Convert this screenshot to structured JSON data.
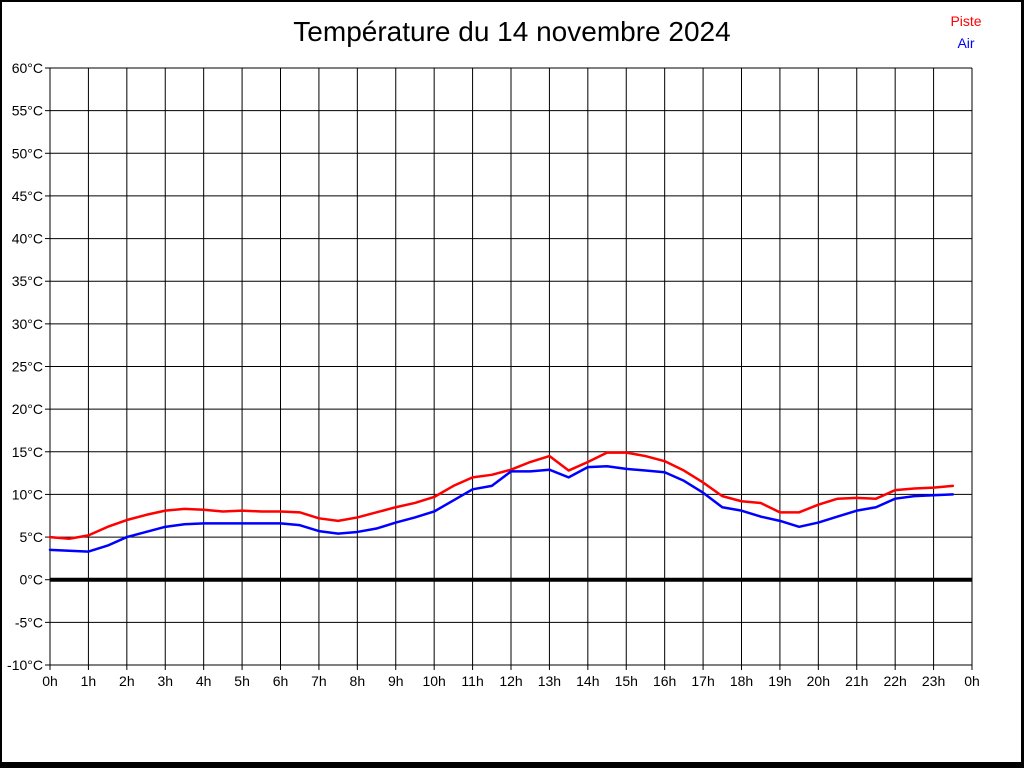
{
  "title": "Température du 14 novembre 2024",
  "legend": [
    {
      "label": "Piste",
      "color": "#ff0000"
    },
    {
      "label": "Air",
      "color": "#0000ff"
    }
  ],
  "colors": {
    "grid": "#000000",
    "zero_line": "#000000",
    "background": "#ffffff",
    "piste": "#ff0000",
    "air": "#0000ff"
  },
  "chart_data": {
    "type": "line",
    "title": "Température du 14 novembre 2024",
    "xlabel": "",
    "ylabel": "",
    "xlim": [
      0,
      24
    ],
    "ylim": [
      -10,
      60
    ],
    "grid": true,
    "zero_line_value": 0,
    "legend_position": "top-right",
    "x_unit": "h",
    "y_unit": "°C",
    "x_tick_values": [
      0,
      1,
      2,
      3,
      4,
      5,
      6,
      7,
      8,
      9,
      10,
      11,
      12,
      13,
      14,
      15,
      16,
      17,
      18,
      19,
      20,
      21,
      22,
      23,
      24
    ],
    "x_tick_labels": [
      "0h",
      "1h",
      "2h",
      "3h",
      "4h",
      "5h",
      "6h",
      "7h",
      "8h",
      "9h",
      "10h",
      "11h",
      "12h",
      "13h",
      "14h",
      "15h",
      "16h",
      "17h",
      "18h",
      "19h",
      "20h",
      "21h",
      "22h",
      "23h",
      "0h"
    ],
    "y_tick_values": [
      60,
      55,
      50,
      45,
      40,
      35,
      30,
      25,
      20,
      15,
      10,
      5,
      0,
      -5,
      -10
    ],
    "y_tick_labels": [
      "60°C",
      "55°C",
      "50°C",
      "45°C",
      "40°C",
      "35°C",
      "30°C",
      "25°C",
      "20°C",
      "15°C",
      "10°C",
      "5°C",
      "0°C",
      "-5°C",
      "-10°C"
    ],
    "x": [
      0,
      0.5,
      1,
      1.5,
      2,
      2.5,
      3,
      3.5,
      4,
      4.5,
      5,
      5.5,
      6,
      6.5,
      7,
      7.5,
      8,
      8.5,
      9,
      9.5,
      10,
      10.5,
      11,
      11.5,
      12,
      12.5,
      13,
      13.5,
      14,
      14.5,
      15,
      15.5,
      16,
      16.5,
      17,
      17.5,
      18,
      18.5,
      19,
      19.5,
      20,
      20.5,
      21,
      21.5,
      22,
      22.5,
      23,
      23.5
    ],
    "series": [
      {
        "name": "Piste",
        "color": "#ff0000",
        "values": [
          5.0,
          4.8,
          5.2,
          6.2,
          7.0,
          7.6,
          8.1,
          8.3,
          8.2,
          8.0,
          8.1,
          8.0,
          8.0,
          7.9,
          7.2,
          6.9,
          7.3,
          7.9,
          8.5,
          9.0,
          9.7,
          11.0,
          12.0,
          12.3,
          12.9,
          13.8,
          14.5,
          12.8,
          13.8,
          14.9,
          14.9,
          14.5,
          13.9,
          12.8,
          11.4,
          9.8,
          9.2,
          9.0,
          7.9,
          7.9,
          8.8,
          9.5,
          9.6,
          9.5,
          10.5,
          10.7,
          10.8,
          11.0
        ]
      },
      {
        "name": "Air",
        "color": "#0000ff",
        "values": [
          3.5,
          3.4,
          3.3,
          4.0,
          5.0,
          5.6,
          6.2,
          6.5,
          6.6,
          6.6,
          6.6,
          6.6,
          6.6,
          6.4,
          5.7,
          5.4,
          5.6,
          6.0,
          6.7,
          7.3,
          8.0,
          9.3,
          10.6,
          11.0,
          12.7,
          12.7,
          12.9,
          12.0,
          13.2,
          13.3,
          13.0,
          12.8,
          12.6,
          11.6,
          10.2,
          8.5,
          8.1,
          7.4,
          6.9,
          6.2,
          6.7,
          7.4,
          8.1,
          8.5,
          9.5,
          9.8,
          9.9,
          10.0
        ]
      }
    ]
  }
}
